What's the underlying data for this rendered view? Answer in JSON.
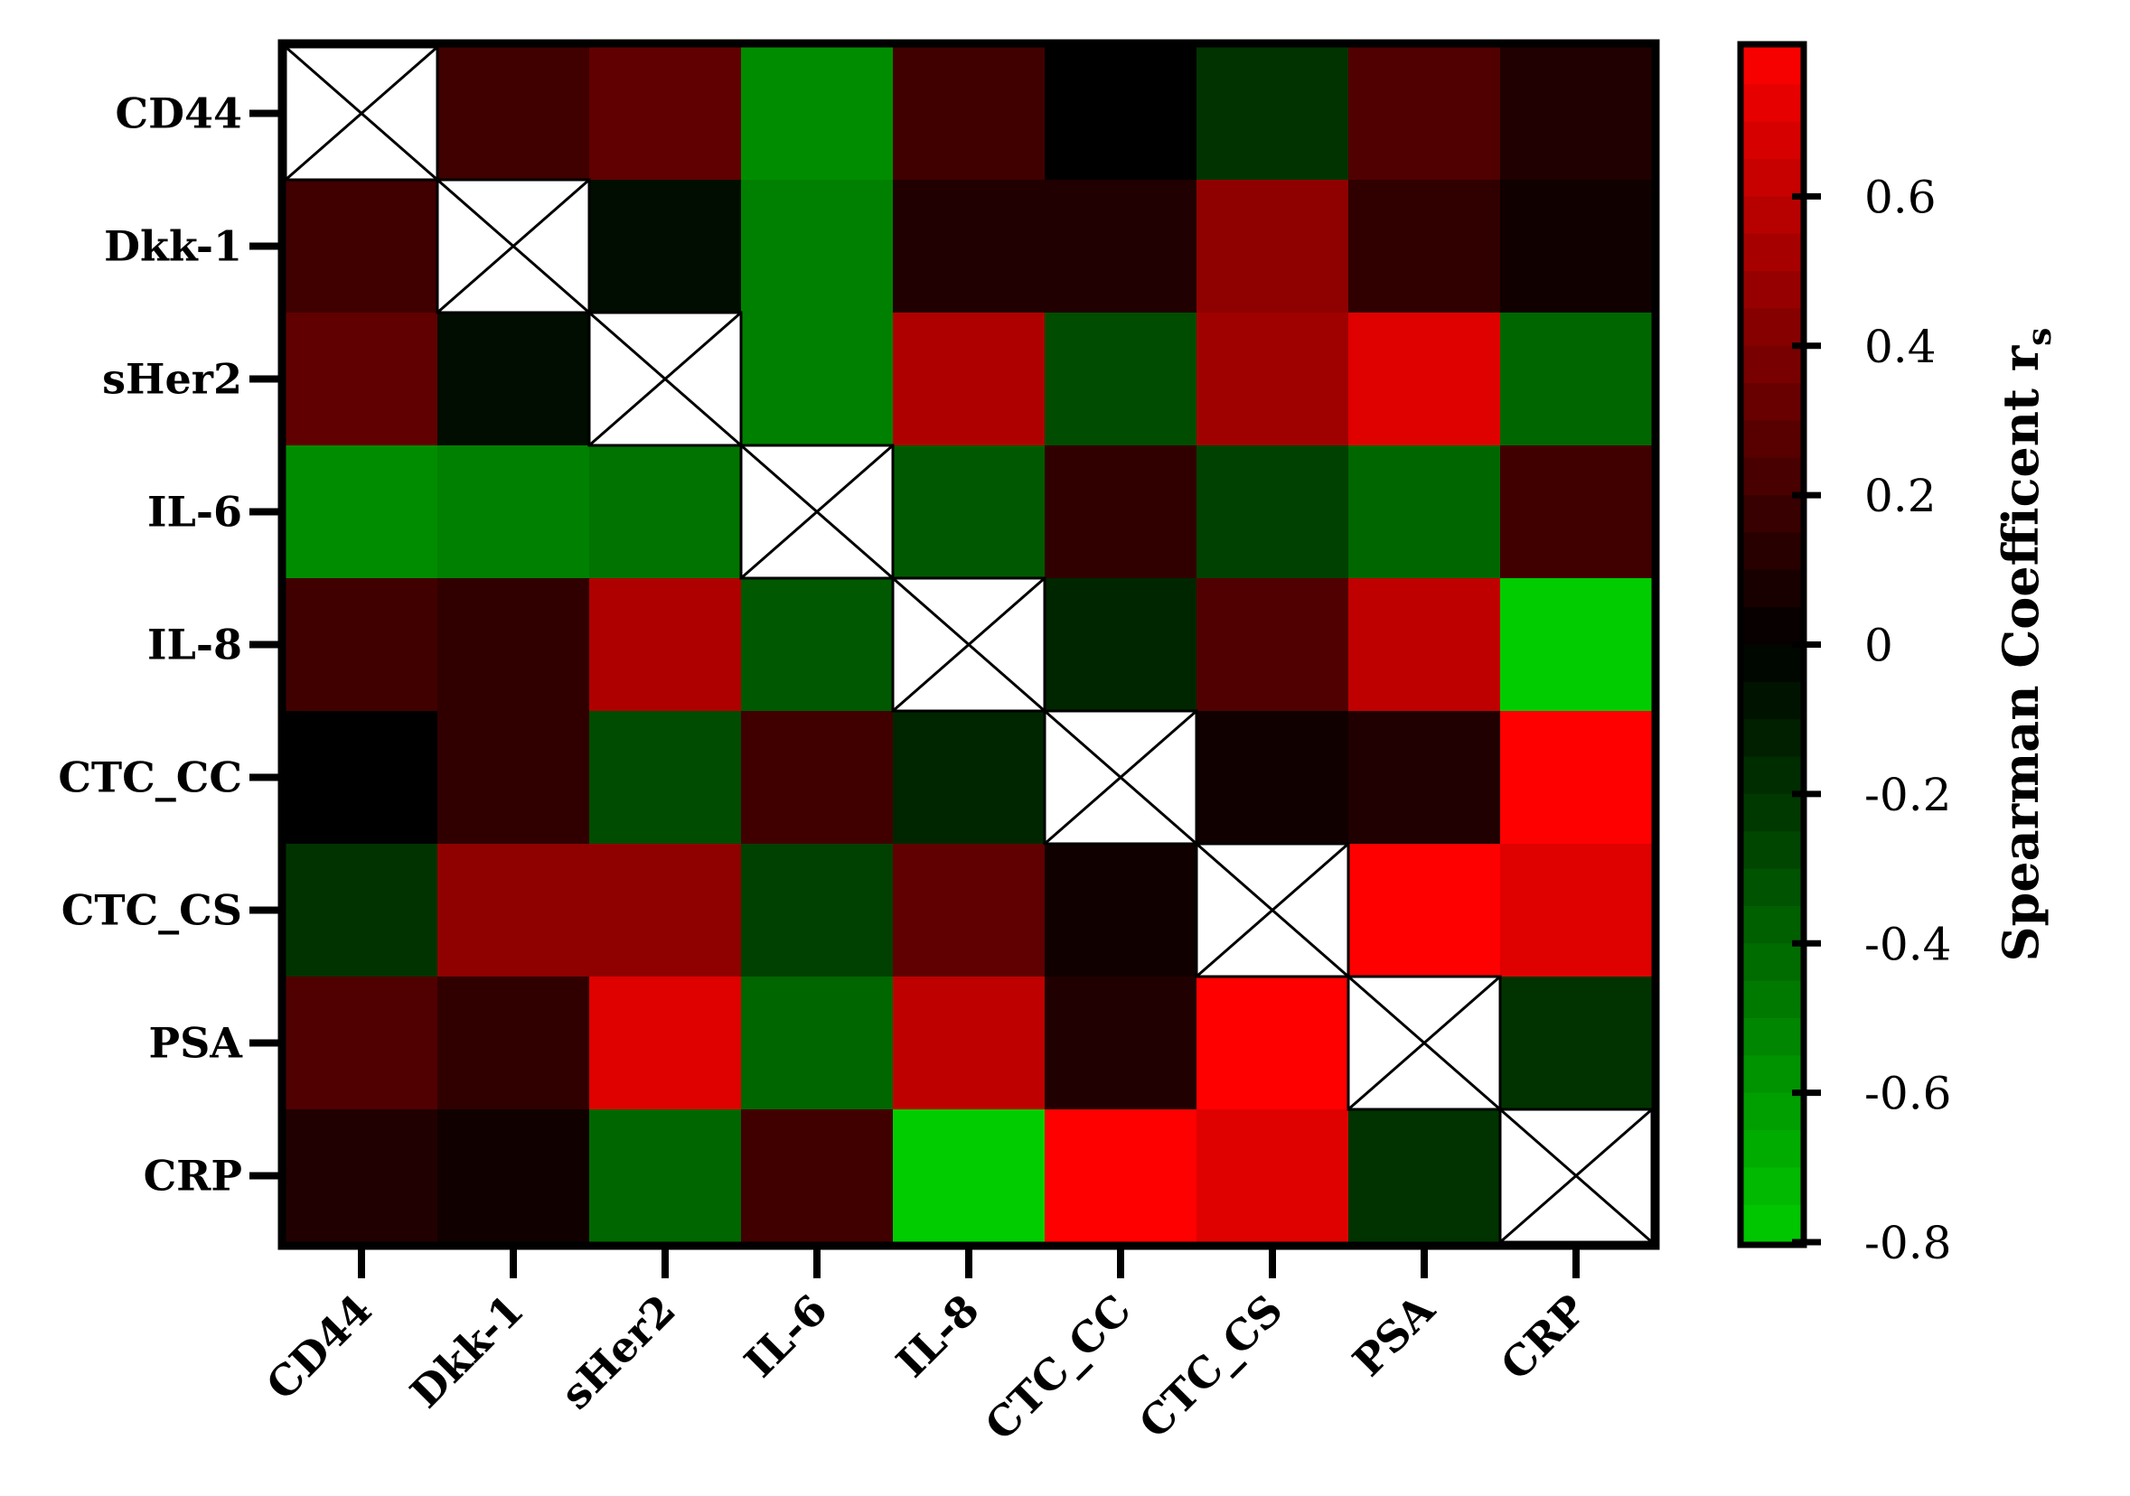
{
  "chart_data": {
    "type": "heatmap",
    "title": "",
    "xlabel": "",
    "ylabel": "",
    "rows": [
      "CD44",
      "Dkk-1",
      "sHer2",
      "IL-6",
      "IL-8",
      "CTC_CC",
      "CTC_CS",
      "PSA",
      "CRP"
    ],
    "columns": [
      "CD44",
      "Dkk-1",
      "sHer2",
      "IL-6",
      "IL-8",
      "CTC_CC",
      "CTC_CS",
      "PSA",
      "CRP"
    ],
    "values": [
      [
        null,
        0.2,
        0.3,
        -0.55,
        0.2,
        0.0,
        -0.2,
        0.25,
        0.1
      ],
      [
        0.2,
        null,
        -0.05,
        -0.5,
        0.1,
        0.1,
        0.45,
        0.15,
        0.05
      ],
      [
        0.3,
        -0.05,
        null,
        -0.5,
        0.55,
        -0.3,
        0.5,
        0.7,
        -0.4
      ],
      [
        -0.55,
        -0.5,
        -0.45,
        null,
        -0.35,
        0.15,
        -0.25,
        -0.4,
        0.2
      ],
      [
        0.2,
        0.15,
        0.55,
        -0.35,
        null,
        -0.15,
        0.25,
        0.6,
        -0.8
      ],
      [
        0.0,
        0.15,
        -0.3,
        0.2,
        -0.15,
        null,
        0.05,
        0.1,
        0.8
      ],
      [
        -0.2,
        0.45,
        0.45,
        -0.25,
        0.3,
        0.05,
        null,
        0.8,
        0.7
      ],
      [
        0.25,
        0.15,
        0.7,
        -0.4,
        0.6,
        0.1,
        0.8,
        null,
        -0.2
      ],
      [
        0.1,
        0.05,
        -0.4,
        0.2,
        -0.8,
        0.8,
        0.7,
        -0.2,
        null
      ]
    ],
    "diagonal": "crossed-out",
    "color_scale": {
      "min": -0.8,
      "max": 0.8,
      "negative_color": "#00cc00",
      "zero_color": "#000000",
      "positive_color": "#ff0000"
    },
    "colorbar": {
      "label": "Spearman Coefficent r",
      "label_subscript": "s",
      "ticks": [
        0.6,
        0.4,
        0.2,
        0,
        -0.2,
        -0.4,
        -0.6,
        -0.8
      ],
      "tick_labels": [
        "0.6",
        "0.4",
        "0.2",
        "0",
        "-0.2",
        "-0.4",
        "-0.6",
        "-0.8"
      ],
      "position": "right"
    },
    "grid": false
  }
}
